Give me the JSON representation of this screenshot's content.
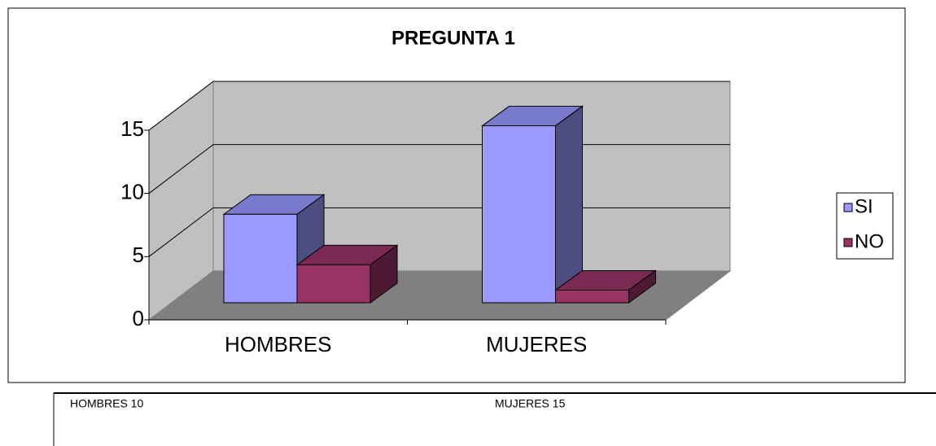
{
  "chart_data": {
    "type": "bar3d",
    "title": "PREGUNTA 1",
    "categories": [
      "HOMBRES",
      "MUJERES"
    ],
    "series": [
      {
        "name": "SI",
        "color": "#9999ff",
        "values": [
          7,
          14
        ]
      },
      {
        "name": "NO",
        "color": "#993366",
        "values": [
          3,
          1
        ]
      }
    ],
    "ylim": [
      0,
      15
    ],
    "yticks": [
      0,
      5,
      10,
      15
    ],
    "grid": true,
    "legend": "right"
  },
  "footer": [
    "HOMBRES 10",
    "MUJERES 15"
  ]
}
